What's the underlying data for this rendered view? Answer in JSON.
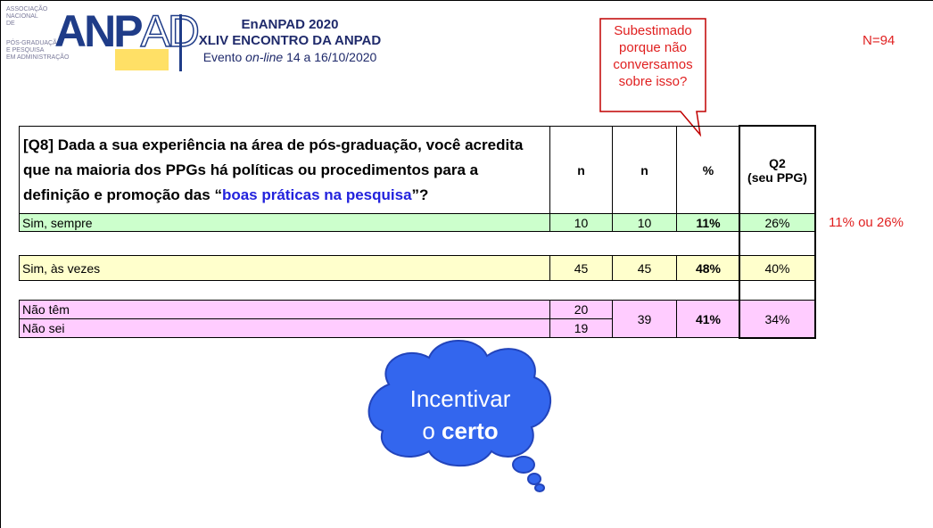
{
  "header": {
    "logo_small_lines": [
      "ASSOCIAÇÃO",
      "NACIONAL",
      "DE",
      "PÓS-GRADUAÇÃO",
      "E PESQUISA",
      "EM ADMINISTRAÇÃO"
    ],
    "logo_main_solid": "ANP",
    "logo_main_outline": "AD",
    "event_title": "EnANPAD 2020",
    "event_subtitle": "XLIV ENCONTRO DA ANPAD",
    "event_line": [
      "Evento ",
      "on-line",
      " 14 a 16/10/2020"
    ]
  },
  "callout": [
    "Subestimado",
    "porque não",
    "conversamos",
    "sobre isso?"
  ],
  "sample_size": "N=94",
  "table": {
    "question": [
      "[Q8] Dada a sua experiência na área de pós-graduação, você acredita que na maioria dos PPGs há políticas ou procedimentos para a definição e promoção das “",
      "boas práticas na pesquisa",
      "”?"
    ],
    "columns": [
      "n",
      "n",
      "%",
      [
        "Q2",
        "(seu PPG)"
      ]
    ],
    "groups": [
      {
        "rows": [
          {
            "label": "Sim, sempre",
            "n": "10"
          }
        ],
        "n": "10",
        "pct": "11%",
        "q2": "26%"
      },
      {
        "rows": [
          {
            "label": "Sim, às vezes",
            "n": "45"
          }
        ],
        "n": "45",
        "pct": "48%",
        "q2": "40%"
      },
      {
        "rows": [
          {
            "label": "Não têm",
            "n": "20"
          },
          {
            "label": "Não sei",
            "n": "19"
          }
        ],
        "n": "39",
        "pct": "41%",
        "q2": "34%"
      }
    ]
  },
  "side_note": "11% ou 26%",
  "cloud": {
    "line1": "Incentivar",
    "line2": [
      "o ",
      "certo"
    ]
  }
}
